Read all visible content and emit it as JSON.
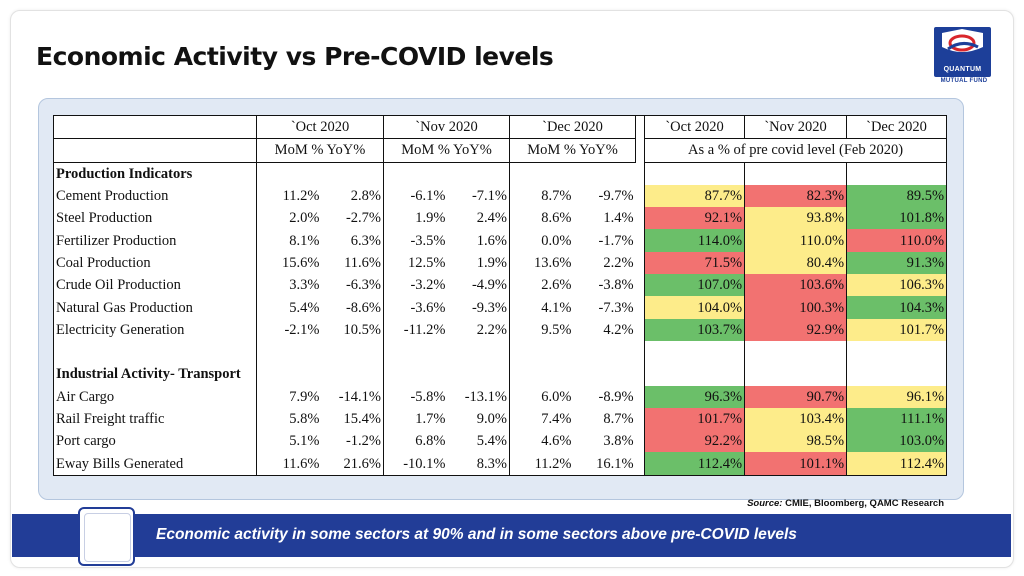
{
  "title": "Economic Activity vs Pre-COVID levels",
  "logo": {
    "name": "QUANTUM",
    "subtitle": "MUTUAL FUND"
  },
  "table": {
    "months": [
      "`Oct 2020",
      "`Nov 2020",
      "`Dec 2020"
    ],
    "precovid_months": [
      "`Oct 2020",
      "`Nov 2020",
      "`Dec 2020"
    ],
    "subheaders": [
      "MoM % YoY%",
      "MoM % YoY%",
      "MoM % YoY%"
    ],
    "precovid_label": "As a % of pre covid level (Feb 2020)",
    "sections": [
      {
        "title": "Production Indicators",
        "rows": [
          {
            "label": "Cement Production",
            "vals": [
              "11.2%",
              "2.8%",
              "-6.1%",
              "-7.1%",
              "8.7%",
              "-9.7%"
            ],
            "pre": [
              "87.7%",
              "82.3%",
              "89.5%"
            ],
            "colors": [
              "y",
              "r",
              "g"
            ]
          },
          {
            "label": "Steel Production",
            "vals": [
              "2.0%",
              "-2.7%",
              "1.9%",
              "2.4%",
              "8.6%",
              "1.4%"
            ],
            "pre": [
              "92.1%",
              "93.8%",
              "101.8%"
            ],
            "colors": [
              "r",
              "y",
              "g"
            ]
          },
          {
            "label": "Fertilizer Production",
            "vals": [
              "8.1%",
              "6.3%",
              "-3.5%",
              "1.6%",
              "0.0%",
              "-1.7%"
            ],
            "pre": [
              "114.0%",
              "110.0%",
              "110.0%"
            ],
            "colors": [
              "g",
              "y",
              "r"
            ]
          },
          {
            "label": "Coal  Production",
            "vals": [
              "15.6%",
              "11.6%",
              "12.5%",
              "1.9%",
              "13.6%",
              "2.2%"
            ],
            "pre": [
              "71.5%",
              "80.4%",
              "91.3%"
            ],
            "colors": [
              "r",
              "y",
              "g"
            ]
          },
          {
            "label": "Crude Oil  Production",
            "vals": [
              "3.3%",
              "-6.3%",
              "-3.2%",
              "-4.9%",
              "2.6%",
              "-3.8%"
            ],
            "pre": [
              "107.0%",
              "103.6%",
              "106.3%"
            ],
            "colors": [
              "g",
              "r",
              "y"
            ]
          },
          {
            "label": "Natural Gas Production",
            "vals": [
              "5.4%",
              "-8.6%",
              "-3.6%",
              "-9.3%",
              "4.1%",
              "-7.3%"
            ],
            "pre": [
              "104.0%",
              "100.3%",
              "104.3%"
            ],
            "colors": [
              "y",
              "r",
              "g"
            ]
          },
          {
            "label": "Electricity Generation",
            "vals": [
              "-2.1%",
              "10.5%",
              "-11.2%",
              "2.2%",
              "9.5%",
              "4.2%"
            ],
            "pre": [
              "103.7%",
              "92.9%",
              "101.7%"
            ],
            "colors": [
              "g",
              "r",
              "y"
            ]
          }
        ]
      },
      {
        "title": "Industrial Activity- Transport",
        "rows": [
          {
            "label": "Air Cargo",
            "vals": [
              "7.9%",
              "-14.1%",
              "-5.8%",
              "-13.1%",
              "6.0%",
              "-8.9%"
            ],
            "pre": [
              "96.3%",
              "90.7%",
              "96.1%"
            ],
            "colors": [
              "g",
              "r",
              "y"
            ]
          },
          {
            "label": "Rail Freight traffic",
            "vals": [
              "5.8%",
              "15.4%",
              "1.7%",
              "9.0%",
              "7.4%",
              "8.7%"
            ],
            "pre": [
              "101.7%",
              "103.4%",
              "111.1%"
            ],
            "colors": [
              "r",
              "y",
              "g"
            ]
          },
          {
            "label": "Port cargo",
            "vals": [
              "5.1%",
              "-1.2%",
              "6.8%",
              "5.4%",
              "4.6%",
              "3.8%"
            ],
            "pre": [
              "92.2%",
              "98.5%",
              "103.0%"
            ],
            "colors": [
              "r",
              "y",
              "g"
            ]
          },
          {
            "label": "Eway Bills Generated",
            "vals": [
              "11.6%",
              "21.6%",
              "-10.1%",
              "8.3%",
              "11.2%",
              "16.1%"
            ],
            "pre": [
              "112.4%",
              "101.1%",
              "112.4%"
            ],
            "colors": [
              "g",
              "r",
              "y"
            ]
          }
        ]
      }
    ]
  },
  "source": {
    "label": "Source:",
    "text": " CMIE, Bloomberg, QAMC Research"
  },
  "banner": "Economic activity in some sectors at 90% and in some sectors above pre-COVID levels",
  "colors": {
    "green": "#6bbf69",
    "yellow": "#fdec8a",
    "red": "#f27271",
    "banner": "#223d97"
  }
}
